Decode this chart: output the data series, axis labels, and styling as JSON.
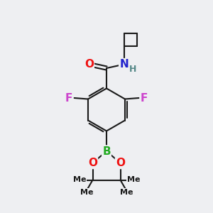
{
  "background_color": "#eeeff2",
  "bond_color": "#1a1a1a",
  "bond_width": 1.5,
  "atom_colors": {
    "O": "#ee1111",
    "N": "#2222cc",
    "F": "#cc44cc",
    "B": "#22aa22",
    "H": "#558888",
    "C": "#1a1a1a"
  },
  "font_size_atom": 11,
  "font_size_small": 9,
  "figsize": [
    3.0,
    3.0
  ],
  "dpi": 100,
  "xlim": [
    0,
    10
  ],
  "ylim": [
    0,
    10
  ]
}
